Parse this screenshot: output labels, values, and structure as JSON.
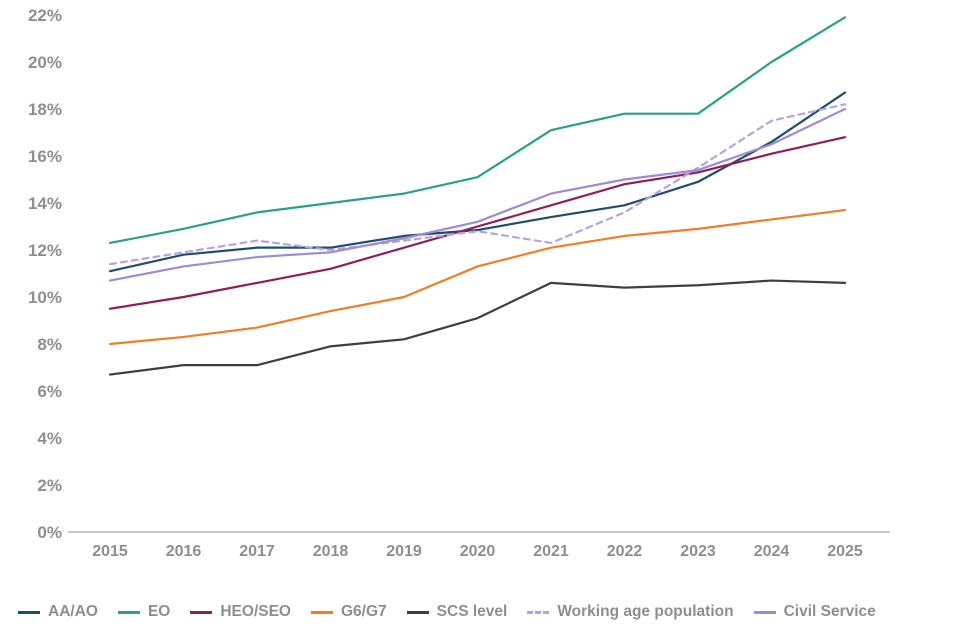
{
  "chart_data": {
    "type": "line",
    "title": "",
    "xlabel": "",
    "ylabel": "",
    "x_labels": [
      "2015",
      "2016",
      "2017",
      "2018",
      "2019",
      "2020",
      "2021",
      "2022",
      "2023",
      "2024",
      "2025"
    ],
    "y_ticks": [
      0,
      2,
      4,
      6,
      8,
      10,
      12,
      14,
      16,
      18,
      20,
      22
    ],
    "y_tick_labels": [
      "0%",
      "2%",
      "4%",
      "6%",
      "8%",
      "10%",
      "12%",
      "14%",
      "16%",
      "18%",
      "20%",
      "22%"
    ],
    "ylim": [
      0,
      22
    ],
    "grid": false,
    "legend_position": "bottom",
    "axis_line_color": "#c9c9c9",
    "tick_label_color": "#8e8e8e",
    "series": [
      {
        "name": "AA/AO",
        "color": "#1e4e6c",
        "dash": false,
        "values": [
          11.1,
          11.8,
          12.1,
          12.1,
          12.6,
          12.85,
          13.4,
          13.9,
          14.9,
          16.6,
          18.7
        ]
      },
      {
        "name": "EO",
        "color": "#29a189",
        "dash": false,
        "values": [
          12.3,
          12.9,
          13.6,
          14.0,
          14.4,
          15.1,
          17.1,
          17.8,
          17.8,
          20.0,
          21.9
        ]
      },
      {
        "name": "HEO/SEO",
        "color": "#8e1f5c",
        "dash": false,
        "values": [
          9.5,
          10.0,
          10.6,
          11.2,
          12.1,
          13.0,
          13.9,
          14.8,
          15.3,
          16.1,
          16.8
        ]
      },
      {
        "name": "G6/G7",
        "color": "#f07e26",
        "dash": false,
        "values": [
          8.0,
          8.3,
          8.7,
          9.4,
          10.0,
          11.3,
          12.1,
          12.6,
          12.9,
          13.3,
          13.7
        ]
      },
      {
        "name": "SCS level",
        "color": "#3f3f3f",
        "dash": false,
        "values": [
          6.7,
          7.1,
          7.1,
          7.9,
          8.2,
          9.1,
          10.6,
          10.4,
          10.5,
          10.7,
          10.6
        ]
      },
      {
        "name": "Working age population",
        "color": "#b3a2e5",
        "dash": true,
        "values": [
          11.4,
          11.9,
          12.4,
          12.0,
          12.4,
          12.8,
          12.3,
          13.6,
          15.5,
          17.5,
          18.2
        ]
      },
      {
        "name": "Civil Service",
        "color": "#9e8bd3",
        "dash": false,
        "values": [
          10.7,
          11.3,
          11.7,
          11.9,
          12.5,
          13.2,
          14.4,
          15.0,
          15.4,
          16.5,
          18.0
        ]
      }
    ]
  }
}
